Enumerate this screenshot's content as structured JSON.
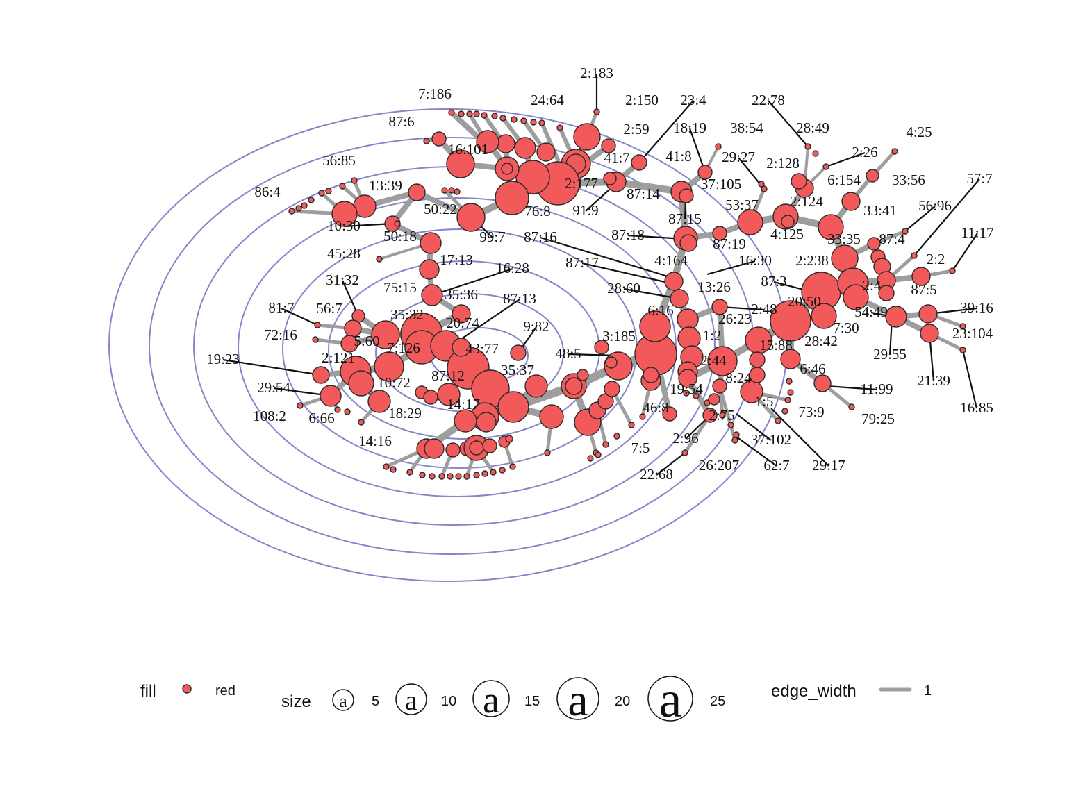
{
  "nodes": [
    {
      "label": "2:183",
      "size": 2
    },
    {
      "label": "7:186",
      "size": 2
    },
    {
      "label": "24:64",
      "size": 2
    },
    {
      "label": "2:150",
      "size": 6
    },
    {
      "label": "23:4",
      "size": 6
    },
    {
      "label": "22:78",
      "size": 2
    },
    {
      "label": "87:6",
      "size": 6
    },
    {
      "label": "2:59",
      "size": 14
    },
    {
      "label": "18:19",
      "size": 6
    },
    {
      "label": "38:54",
      "size": 2
    },
    {
      "label": "28:49",
      "size": 2
    },
    {
      "label": "4:25",
      "size": 2
    },
    {
      "label": "16:101",
      "size": 12
    },
    {
      "label": "41:7",
      "size": 10
    },
    {
      "label": "41:8",
      "size": 6
    },
    {
      "label": "29:27",
      "size": 2
    },
    {
      "label": "2:128",
      "size": 8
    },
    {
      "label": "2:26",
      "size": 2
    },
    {
      "label": "56:85",
      "size": 2
    },
    {
      "label": "2:177",
      "size": 18
    },
    {
      "label": "37:105",
      "size": 10
    },
    {
      "label": "6:154",
      "size": 8
    },
    {
      "label": "33:56",
      "size": 6
    },
    {
      "label": "57:7",
      "size": 2
    },
    {
      "label": "86:4",
      "size": 2
    },
    {
      "label": "13:39",
      "size": 8
    },
    {
      "label": "87:14",
      "size": 10
    },
    {
      "label": "2:124",
      "size": 12
    },
    {
      "label": "53:37",
      "size": 12
    },
    {
      "label": "50:22",
      "size": 12
    },
    {
      "label": "76:8",
      "size": 14
    },
    {
      "label": "91:9",
      "size": 10
    },
    {
      "label": "33:41",
      "size": 12
    },
    {
      "label": "56:96",
      "size": 2
    },
    {
      "label": "10:30",
      "size": 6
    },
    {
      "label": "87:15",
      "size": 10
    },
    {
      "label": "99:7",
      "size": 12
    },
    {
      "label": "50:18",
      "size": 10
    },
    {
      "label": "87:16",
      "size": 10
    },
    {
      "label": "87:18",
      "size": 12
    },
    {
      "label": "87:19",
      "size": 6
    },
    {
      "label": "4:125",
      "size": 12
    },
    {
      "label": "33:35",
      "size": 12
    },
    {
      "label": "87:4",
      "size": 6
    },
    {
      "label": "11:17",
      "size": 2
    },
    {
      "label": "45:28",
      "size": 2
    },
    {
      "label": "17:13",
      "size": 10
    },
    {
      "label": "4:164",
      "size": 10
    },
    {
      "label": "16:30",
      "size": 2
    },
    {
      "label": "2:238",
      "size": 14
    },
    {
      "label": "2:2",
      "size": 10
    },
    {
      "label": "87:17",
      "size": 10
    },
    {
      "label": "16:28",
      "size": 10
    },
    {
      "label": "31:32",
      "size": 2
    },
    {
      "label": "75:15",
      "size": 10
    },
    {
      "label": "87:3",
      "size": 20
    },
    {
      "label": "2:4",
      "size": 12
    },
    {
      "label": "87:5",
      "size": 12
    },
    {
      "label": "28:60",
      "size": 10
    },
    {
      "label": "13:26",
      "size": 10
    },
    {
      "label": "35:36",
      "size": 12
    },
    {
      "label": "87:13",
      "size": 18
    },
    {
      "label": "2:48",
      "size": 8
    },
    {
      "label": "20:50",
      "size": 20
    },
    {
      "label": "81:7",
      "size": 2
    },
    {
      "label": "56:7",
      "size": 6
    },
    {
      "label": "35:32",
      "size": 14
    },
    {
      "label": "6:16",
      "size": 14
    },
    {
      "label": "26:23",
      "size": 10
    },
    {
      "label": "54:49",
      "size": 10
    },
    {
      "label": "39:16",
      "size": 10
    },
    {
      "label": "9:82",
      "size": 8
    },
    {
      "label": "20:74",
      "size": 12
    },
    {
      "label": "7:30",
      "size": 12
    },
    {
      "label": "72:16",
      "size": 2
    },
    {
      "label": "3:185",
      "size": 12
    },
    {
      "label": "1:2",
      "size": 12
    },
    {
      "label": "23:104",
      "size": 2
    },
    {
      "label": "5:60",
      "size": 8
    },
    {
      "label": "7:126",
      "size": 20
    },
    {
      "label": "28:42",
      "size": 10
    },
    {
      "label": "29:55",
      "size": 2
    },
    {
      "label": "43:77",
      "size": 20
    },
    {
      "label": "15:88",
      "size": 10
    },
    {
      "label": "48:5",
      "size": 14
    },
    {
      "label": "19:23",
      "size": 8
    },
    {
      "label": "2:121",
      "size": 12
    },
    {
      "label": "2:44",
      "size": 14
    },
    {
      "label": "6:46",
      "size": 8
    },
    {
      "label": "21:39",
      "size": 10
    },
    {
      "label": "35:37",
      "size": 12
    },
    {
      "label": "87:12",
      "size": 10
    },
    {
      "label": "10:72",
      "size": 10
    },
    {
      "label": "8:24",
      "size": 8
    },
    {
      "label": "11:99",
      "size": 8
    },
    {
      "label": "29:54",
      "size": 10
    },
    {
      "label": "19:54",
      "size": 10
    },
    {
      "label": "1:5",
      "size": 10
    },
    {
      "label": "14:17",
      "size": 12
    },
    {
      "label": "73:9",
      "size": 2
    },
    {
      "label": "79:25",
      "size": 2
    },
    {
      "label": "18:29",
      "size": 10
    },
    {
      "label": "16:85",
      "size": 2
    },
    {
      "label": "108:2",
      "size": 2
    },
    {
      "label": "6:66",
      "size": 2
    },
    {
      "label": "46:8",
      "size": 8
    },
    {
      "label": "2:75",
      "size": 6
    },
    {
      "label": "37:102",
      "size": 2
    },
    {
      "label": "14:16",
      "size": 10
    },
    {
      "label": "2:96",
      "size": 6
    },
    {
      "label": "7:5",
      "size": 2
    },
    {
      "label": "26:207",
      "size": 2
    },
    {
      "label": "62:7",
      "size": 2
    },
    {
      "label": "29:17",
      "size": 2
    },
    {
      "label": "22:68",
      "size": 2
    }
  ],
  "legend": {
    "fill_title": "fill",
    "fill_value": "red",
    "size_title": "size",
    "size_key_glyph": "a",
    "size_breaks": [
      "5",
      "10",
      "15",
      "20",
      "25"
    ],
    "edge_title": "edge_width",
    "edge_value": "1"
  },
  "colors": {
    "node_fill": "#f2595a",
    "node_stroke": "#2a2a2a",
    "edge": "#9e9e9e",
    "ring": "#8585c8",
    "leader": "#111111"
  }
}
